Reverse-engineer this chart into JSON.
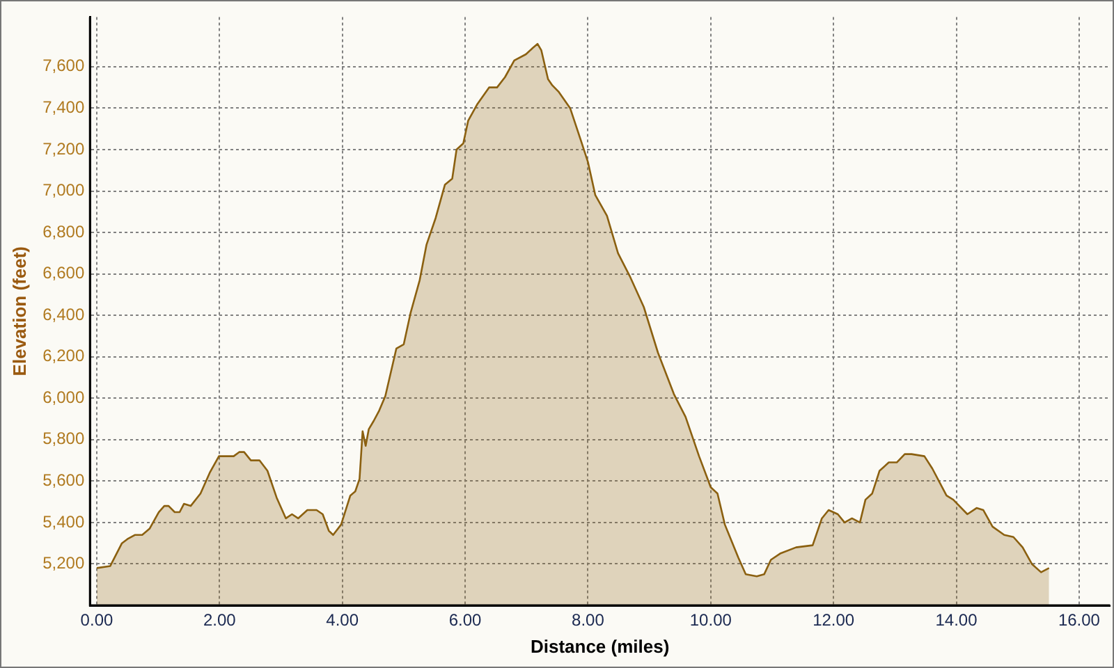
{
  "chart_data": {
    "type": "area",
    "xlabel": "Distance (miles)",
    "ylabel": "Elevation (feet)",
    "color": "#8b6010",
    "x": [
      0,
      0.22,
      0.41,
      0.5,
      0.62,
      0.74,
      0.86,
      1.01,
      1.1,
      1.17,
      1.27,
      1.35,
      1.42,
      1.53,
      1.69,
      1.84,
      1.99,
      2.23,
      2.32,
      2.4,
      2.51,
      2.65,
      2.78,
      2.93,
      3.08,
      3.18,
      3.28,
      3.43,
      3.58,
      3.68,
      3.78,
      3.85,
      3.98,
      4.13,
      4.21,
      4.28,
      4.33,
      4.38,
      4.43,
      4.51,
      4.6,
      4.7,
      4.88,
      5.0,
      5.11,
      5.26,
      5.37,
      5.52,
      5.67,
      5.79,
      5.86,
      5.97,
      6.05,
      6.2,
      6.39,
      6.52,
      6.65,
      6.8,
      6.99,
      7.1,
      7.18,
      7.24,
      7.35,
      7.42,
      7.52,
      7.71,
      7.89,
      8.0,
      8.12,
      8.31,
      8.49,
      8.68,
      8.91,
      9.14,
      9.4,
      9.59,
      9.81,
      10.0,
      10.11,
      10.23,
      10.45,
      10.57,
      10.75,
      10.87,
      10.98,
      11.13,
      11.39,
      11.66,
      11.81,
      11.92,
      12.07,
      12.18,
      12.3,
      12.43,
      12.52,
      12.63,
      12.75,
      12.9,
      13.03,
      13.16,
      13.27,
      13.48,
      13.61,
      13.84,
      13.95,
      14.18,
      14.33,
      14.44,
      14.59,
      14.78,
      14.93,
      15.08,
      15.23,
      15.38,
      15.51
    ],
    "values": [
      5180,
      5190,
      5300,
      5320,
      5340,
      5340,
      5370,
      5450,
      5480,
      5480,
      5450,
      5450,
      5490,
      5480,
      5540,
      5640,
      5720,
      5720,
      5740,
      5740,
      5700,
      5700,
      5650,
      5520,
      5420,
      5440,
      5420,
      5460,
      5460,
      5440,
      5360,
      5340,
      5390,
      5530,
      5550,
      5610,
      5840,
      5770,
      5850,
      5890,
      5940,
      6010,
      6240,
      6260,
      6410,
      6570,
      6740,
      6870,
      7030,
      7060,
      7200,
      7230,
      7340,
      7420,
      7500,
      7500,
      7550,
      7630,
      7660,
      7690,
      7710,
      7680,
      7540,
      7510,
      7480,
      7400,
      7240,
      7140,
      6980,
      6880,
      6700,
      6590,
      6440,
      6220,
      6020,
      5910,
      5720,
      5570,
      5540,
      5390,
      5230,
      5150,
      5140,
      5150,
      5220,
      5250,
      5280,
      5290,
      5420,
      5460,
      5440,
      5400,
      5420,
      5400,
      5510,
      5540,
      5650,
      5690,
      5690,
      5730,
      5730,
      5720,
      5660,
      5530,
      5510,
      5440,
      5470,
      5460,
      5380,
      5340,
      5330,
      5280,
      5200,
      5160,
      5180
    ],
    "xlim": [
      -0.11,
      16.5
    ],
    "ylim": [
      5000,
      7840
    ],
    "xticks": [
      {
        "value": 0,
        "label": "0.00"
      },
      {
        "value": 2,
        "label": "2.00"
      },
      {
        "value": 4,
        "label": "4.00"
      },
      {
        "value": 6,
        "label": "6.00"
      },
      {
        "value": 8,
        "label": "8.00"
      },
      {
        "value": 10,
        "label": "10.00"
      },
      {
        "value": 12,
        "label": "12.00"
      },
      {
        "value": 14,
        "label": "14.00"
      },
      {
        "value": 16,
        "label": "16.00"
      }
    ],
    "yticks": [
      {
        "value": 5200,
        "label": "5,200"
      },
      {
        "value": 5400,
        "label": "5,400"
      },
      {
        "value": 5600,
        "label": "5,600"
      },
      {
        "value": 5800,
        "label": "5,800"
      },
      {
        "value": 6000,
        "label": "6,000"
      },
      {
        "value": 6200,
        "label": "6,200"
      },
      {
        "value": 6400,
        "label": "6,400"
      },
      {
        "value": 6600,
        "label": "6,600"
      },
      {
        "value": 6800,
        "label": "6,800"
      },
      {
        "value": 7000,
        "label": "7,000"
      },
      {
        "value": 7200,
        "label": "7,200"
      },
      {
        "value": 7400,
        "label": "7,400"
      },
      {
        "value": 7600,
        "label": "7,600"
      }
    ],
    "grid": true,
    "legend": false,
    "marker": "none",
    "line_style": "solid"
  }
}
